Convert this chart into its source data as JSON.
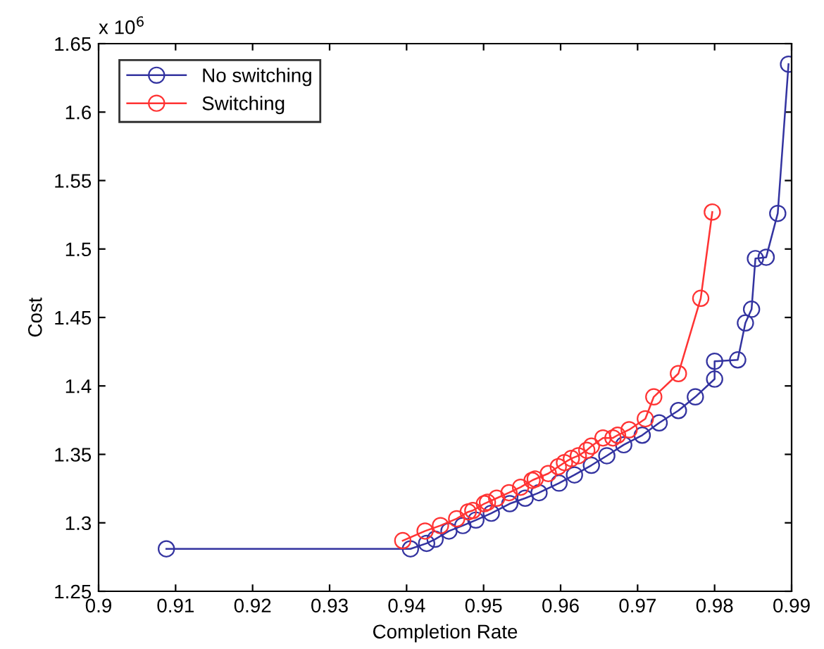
{
  "chart_data": {
    "type": "line",
    "xlabel": "Completion Rate",
    "ylabel": "Cost",
    "annotations": [
      "x 10$^{6}$"
    ],
    "series": [
      {
        "name": "No switching",
        "color": "#3333a0",
        "x": [
          0.9088,
          0.9405,
          0.9426,
          0.9437,
          0.9455,
          0.9473,
          0.949,
          0.951,
          0.9534,
          0.9554,
          0.9572,
          0.9598,
          0.9618,
          0.964,
          0.966,
          0.9682,
          0.9706,
          0.9728,
          0.9753,
          0.9775,
          0.98,
          0.98,
          0.983,
          0.984,
          0.9848,
          0.9853,
          0.9867,
          0.9882,
          0.9896
        ],
        "values": [
          1.281,
          1.281,
          1.285,
          1.288,
          1.294,
          1.298,
          1.302,
          1.307,
          1.314,
          1.318,
          1.322,
          1.329,
          1.335,
          1.342,
          1.349,
          1.357,
          1.364,
          1.373,
          1.382,
          1.392,
          1.405,
          1.418,
          1.419,
          1.446,
          1.456,
          1.493,
          1.494,
          1.526,
          1.635
        ]
      },
      {
        "name": "Switching",
        "color": "#ff3333",
        "x": [
          0.9395,
          0.9424,
          0.9444,
          0.9465,
          0.948,
          0.9486,
          0.9501,
          0.9505,
          0.9517,
          0.9533,
          0.9548,
          0.9563,
          0.9567,
          0.9584,
          0.9597,
          0.9605,
          0.9614,
          0.9623,
          0.9634,
          0.964,
          0.9655,
          0.9668,
          0.9674,
          0.9689,
          0.971,
          0.9721,
          0.9753,
          0.9782,
          0.9797
        ],
        "values": [
          1.287,
          1.294,
          1.298,
          1.303,
          1.308,
          1.309,
          1.314,
          1.315,
          1.318,
          1.322,
          1.326,
          1.331,
          1.332,
          1.336,
          1.341,
          1.344,
          1.347,
          1.349,
          1.353,
          1.356,
          1.362,
          1.362,
          1.364,
          1.368,
          1.376,
          1.392,
          1.409,
          1.464,
          1.527
        ]
      }
    ],
    "xlim": [
      0.9,
      0.99
    ],
    "xticks": [
      0.9,
      0.91,
      0.92,
      0.93,
      0.94,
      0.95,
      0.96,
      0.97,
      0.98,
      0.99
    ],
    "ylim": [
      1.25,
      1.65
    ],
    "yticks": [
      1.25,
      1.3,
      1.35,
      1.4,
      1.45,
      1.5,
      1.55,
      1.6,
      1.65
    ],
    "legend": "top left",
    "marker": "circle",
    "line_style": "solid",
    "grid": false
  }
}
